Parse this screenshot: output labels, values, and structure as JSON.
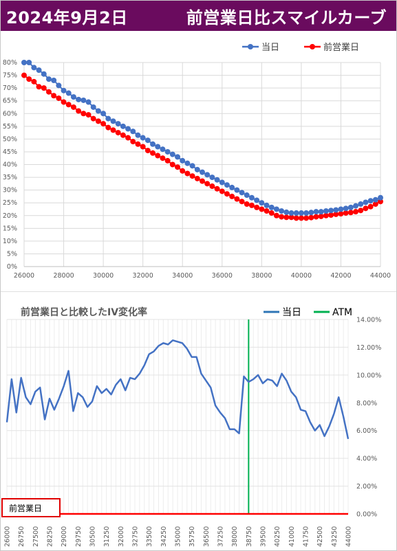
{
  "header": {
    "date": "2024年9月2日",
    "title": "前営業日比スマイルカーブ"
  },
  "colors": {
    "banner": "#6a0b5e",
    "today": "#4472c4",
    "prev": "#ff0000",
    "atm": "#00b050",
    "ivline": "#4472c4"
  },
  "chart_data": [
    {
      "type": "line",
      "title": "",
      "legend_position": "top-right",
      "xlim": [
        26000,
        44000
      ],
      "ylim": [
        0,
        0.8
      ],
      "x_ticks": [
        "26000",
        "28000",
        "30000",
        "32000",
        "34000",
        "36000",
        "38000",
        "40000",
        "42000",
        "44000"
      ],
      "y_ticks": [
        "0%",
        "5%",
        "10%",
        "15%",
        "20%",
        "25%",
        "30%",
        "35%",
        "40%",
        "45%",
        "50%",
        "55%",
        "60%",
        "65%",
        "70%",
        "75%",
        "80%"
      ],
      "grid": true,
      "x": [
        26000,
        26250,
        26500,
        26750,
        27000,
        27250,
        27500,
        27750,
        28000,
        28250,
        28500,
        28750,
        29000,
        29250,
        29500,
        29750,
        30000,
        30250,
        30500,
        30750,
        31000,
        31250,
        31500,
        31750,
        32000,
        32250,
        32500,
        32750,
        33000,
        33250,
        33500,
        33750,
        34000,
        34250,
        34500,
        34750,
        35000,
        35250,
        35500,
        35750,
        36000,
        36250,
        36500,
        36750,
        37000,
        37250,
        37500,
        37750,
        38000,
        38250,
        38500,
        38750,
        39000,
        39250,
        39500,
        39750,
        40000,
        40250,
        40500,
        40750,
        41000,
        41250,
        41500,
        41750,
        42000,
        42250,
        42500,
        42750,
        43000,
        43250,
        43500,
        43750,
        44000
      ],
      "series": [
        {
          "name": "当日",
          "values": [
            0.8,
            0.8,
            0.78,
            0.77,
            0.755,
            0.735,
            0.73,
            0.71,
            0.69,
            0.68,
            0.665,
            0.655,
            0.652,
            0.645,
            0.625,
            0.61,
            0.6,
            0.58,
            0.57,
            0.56,
            0.55,
            0.54,
            0.53,
            0.515,
            0.505,
            0.495,
            0.48,
            0.47,
            0.46,
            0.45,
            0.44,
            0.43,
            0.415,
            0.405,
            0.395,
            0.38,
            0.37,
            0.36,
            0.35,
            0.34,
            0.33,
            0.32,
            0.31,
            0.3,
            0.29,
            0.28,
            0.27,
            0.26,
            0.25,
            0.24,
            0.232,
            0.225,
            0.218,
            0.213,
            0.21,
            0.21,
            0.21,
            0.21,
            0.212,
            0.215,
            0.215,
            0.218,
            0.22,
            0.222,
            0.225,
            0.228,
            0.232,
            0.238,
            0.245,
            0.252,
            0.258,
            0.262,
            0.27
          ]
        },
        {
          "name": "前営業日",
          "values": [
            0.75,
            0.735,
            0.725,
            0.705,
            0.7,
            0.685,
            0.67,
            0.66,
            0.645,
            0.635,
            0.625,
            0.61,
            0.6,
            0.595,
            0.58,
            0.57,
            0.56,
            0.545,
            0.535,
            0.525,
            0.515,
            0.505,
            0.49,
            0.48,
            0.47,
            0.455,
            0.445,
            0.435,
            0.425,
            0.415,
            0.4,
            0.39,
            0.375,
            0.365,
            0.355,
            0.345,
            0.335,
            0.325,
            0.315,
            0.305,
            0.295,
            0.285,
            0.275,
            0.265,
            0.255,
            0.245,
            0.24,
            0.232,
            0.225,
            0.218,
            0.21,
            0.2,
            0.195,
            0.193,
            0.193,
            0.19,
            0.19,
            0.19,
            0.192,
            0.195,
            0.197,
            0.2,
            0.202,
            0.205,
            0.207,
            0.21,
            0.212,
            0.215,
            0.22,
            0.228,
            0.235,
            0.245,
            0.255
          ]
        }
      ]
    },
    {
      "type": "line",
      "title": "前営業日と比較したIV変化率",
      "legend_position": "top-right",
      "ylim": [
        0,
        0.14
      ],
      "y_ticks": [
        "0.00%",
        "2.00%",
        "4.00%",
        "6.00%",
        "8.00%",
        "10.00%",
        "12.00%",
        "14.00%"
      ],
      "categories": [
        "26000",
        "26250",
        "26500",
        "26750",
        "27000",
        "27250",
        "27500",
        "27750",
        "28000",
        "28250",
        "28500",
        "28750",
        "29000",
        "29250",
        "29500",
        "29750",
        "30000",
        "30250",
        "30500",
        "30750",
        "31000",
        "31250",
        "31500",
        "31750",
        "32000",
        "32250",
        "32500",
        "32750",
        "33000",
        "33250",
        "33500",
        "33750",
        "34000",
        "34250",
        "34500",
        "34750",
        "35000",
        "35250",
        "35500",
        "35750",
        "36000",
        "36250",
        "36500",
        "36750",
        "37000",
        "37250",
        "37500",
        "37750",
        "38000",
        "38250",
        "38500",
        "38750",
        "39000",
        "39250",
        "39500",
        "39750",
        "40000",
        "40250",
        "40500",
        "40750",
        "41000",
        "41250",
        "41500",
        "41750",
        "42000",
        "42250",
        "42500",
        "42750",
        "43000",
        "43250",
        "43500",
        "43750",
        "44000"
      ],
      "x_tick_labels": [
        "26000",
        "26750",
        "27500",
        "28250",
        "29000",
        "29750",
        "30500",
        "31250",
        "32000",
        "32750",
        "33500",
        "34250",
        "35000",
        "35750",
        "36500",
        "37250",
        "38000",
        "38750",
        "39500",
        "40250",
        "41000",
        "41750",
        "42500",
        "43250",
        "44000"
      ],
      "atm_strike": "38750",
      "series": [
        {
          "name": "当日",
          "values": [
            0.066,
            0.097,
            0.073,
            0.098,
            0.084,
            0.079,
            0.088,
            0.091,
            0.068,
            0.083,
            0.075,
            0.083,
            0.092,
            0.103,
            0.074,
            0.087,
            0.084,
            0.077,
            0.081,
            0.092,
            0.087,
            0.09,
            0.086,
            0.093,
            0.097,
            0.089,
            0.098,
            0.097,
            0.101,
            0.107,
            0.115,
            0.117,
            0.121,
            0.123,
            0.122,
            0.125,
            0.124,
            0.123,
            0.119,
            0.113,
            0.113,
            0.101,
            0.096,
            0.091,
            0.078,
            0.073,
            0.069,
            0.061,
            0.061,
            0.058,
            0.099,
            0.095,
            0.097,
            0.1,
            0.094,
            0.097,
            0.096,
            0.092,
            0.101,
            0.096,
            0.088,
            0.084,
            0.075,
            0.074,
            0.066,
            0.06,
            0.064,
            0.056,
            0.063,
            0.072,
            0.084,
            0.07,
            0.054
          ]
        },
        {
          "name": "前営業日",
          "values": [
            0,
            0,
            0,
            0,
            0,
            0,
            0,
            0,
            0,
            0,
            0,
            0,
            0,
            0,
            0,
            0,
            0,
            0,
            0,
            0,
            0,
            0,
            0,
            0,
            0,
            0,
            0,
            0,
            0,
            0,
            0,
            0,
            0,
            0,
            0,
            0,
            0,
            0,
            0,
            0,
            0,
            0,
            0,
            0,
            0,
            0,
            0,
            0,
            0,
            0,
            0,
            0,
            0,
            0,
            0,
            0,
            0,
            0,
            0,
            0,
            0,
            0,
            0,
            0,
            0,
            0,
            0,
            0,
            0,
            0,
            0,
            0,
            0
          ]
        }
      ],
      "atm_legend": "ATM"
    }
  ]
}
